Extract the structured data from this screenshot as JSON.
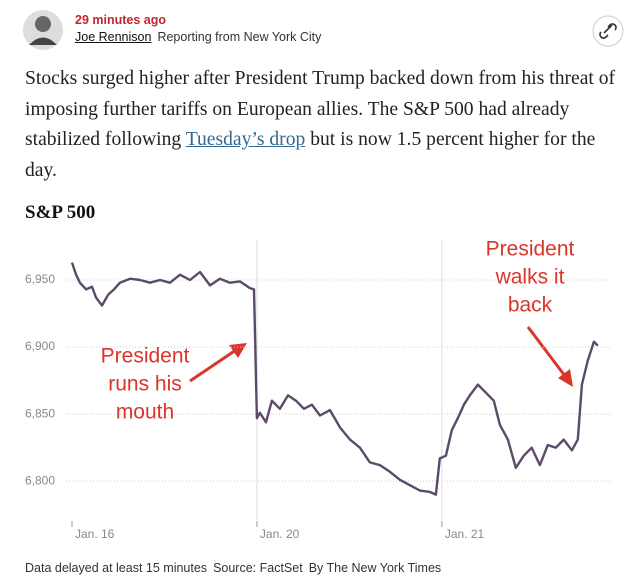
{
  "header": {
    "time": "29 minutes ago",
    "author": "Joe Rennison",
    "location": "Reporting from New York City"
  },
  "body": {
    "before": "Stocks surged higher after President Trump backed down from his threat of imposing further tariffs on European allies. The S&P 500 had already stabilized following ",
    "link": "Tuesday’s drop",
    "after": " but is now 1.5 percent higher for the day."
  },
  "footer": {
    "delay": "Data delayed at least 15 minutes",
    "source": "Source: FactSet",
    "credit": "By The New York Times"
  },
  "chart_data": {
    "type": "line",
    "title": "S&P 500",
    "color": "#5b4a68",
    "x": [
      0,
      0.022,
      0.043,
      0.076,
      0.108,
      0.13,
      0.162,
      0.195,
      0.227,
      0.259,
      0.314,
      0.368,
      0.422,
      0.476,
      0.53,
      0.584,
      0.638,
      0.692,
      0.746,
      0.8,
      0.854,
      0.908,
      0.962,
      0.984,
      1.0,
      1.016,
      1.049,
      1.081,
      1.124,
      1.168,
      1.211,
      1.254,
      1.297,
      1.341,
      1.395,
      1.449,
      1.503,
      1.557,
      1.611,
      1.665,
      1.719,
      1.773,
      1.827,
      1.881,
      1.935,
      1.968,
      1.989,
      2.022,
      2.054,
      2.086,
      2.119,
      2.151,
      2.195,
      2.238,
      2.281,
      2.314,
      2.357,
      2.4,
      2.443,
      2.486,
      2.53,
      2.573,
      2.616,
      2.659,
      2.703,
      2.735,
      2.757,
      2.789,
      2.822,
      2.843
    ],
    "values": [
      6963,
      6954,
      6948,
      6943,
      6945,
      6937,
      6931,
      6939,
      6943,
      6948,
      6951,
      6950,
      6948,
      6950,
      6948,
      6954,
      6950,
      6956,
      6946,
      6951,
      6948,
      6949,
      6944,
      6943,
      6847,
      6851,
      6844,
      6860,
      6854,
      6864,
      6860,
      6854,
      6857,
      6849,
      6853,
      6840,
      6831,
      6825,
      6814,
      6812,
      6807,
      6801,
      6797,
      6793,
      6792,
      6790,
      6817,
      6819,
      6838,
      6847,
      6857,
      6864,
      6872,
      6866,
      6860,
      6842,
      6831,
      6810,
      6819,
      6825,
      6812,
      6827,
      6825,
      6831,
      6823,
      6831,
      6872,
      6890,
      6904,
      6901
    ],
    "xlim": [
      -0.04,
      2.92
    ],
    "xticks": [
      {
        "value": 0,
        "label": "Jan. 16"
      },
      {
        "value": 1,
        "label": "Jan. 20"
      },
      {
        "value": 2,
        "label": "Jan. 21"
      }
    ],
    "ylim": [
      6780,
      6975
    ],
    "yticks": [
      {
        "value": 6800,
        "label": "6,800"
      },
      {
        "value": 6850,
        "label": "6,850"
      },
      {
        "value": 6900,
        "label": "6,900"
      },
      {
        "value": 6950,
        "label": "6,950"
      }
    ],
    "grid": true,
    "annotations": [
      [
        "President",
        "runs his",
        "mouth"
      ],
      [
        "President",
        "walks it",
        "back"
      ]
    ]
  }
}
